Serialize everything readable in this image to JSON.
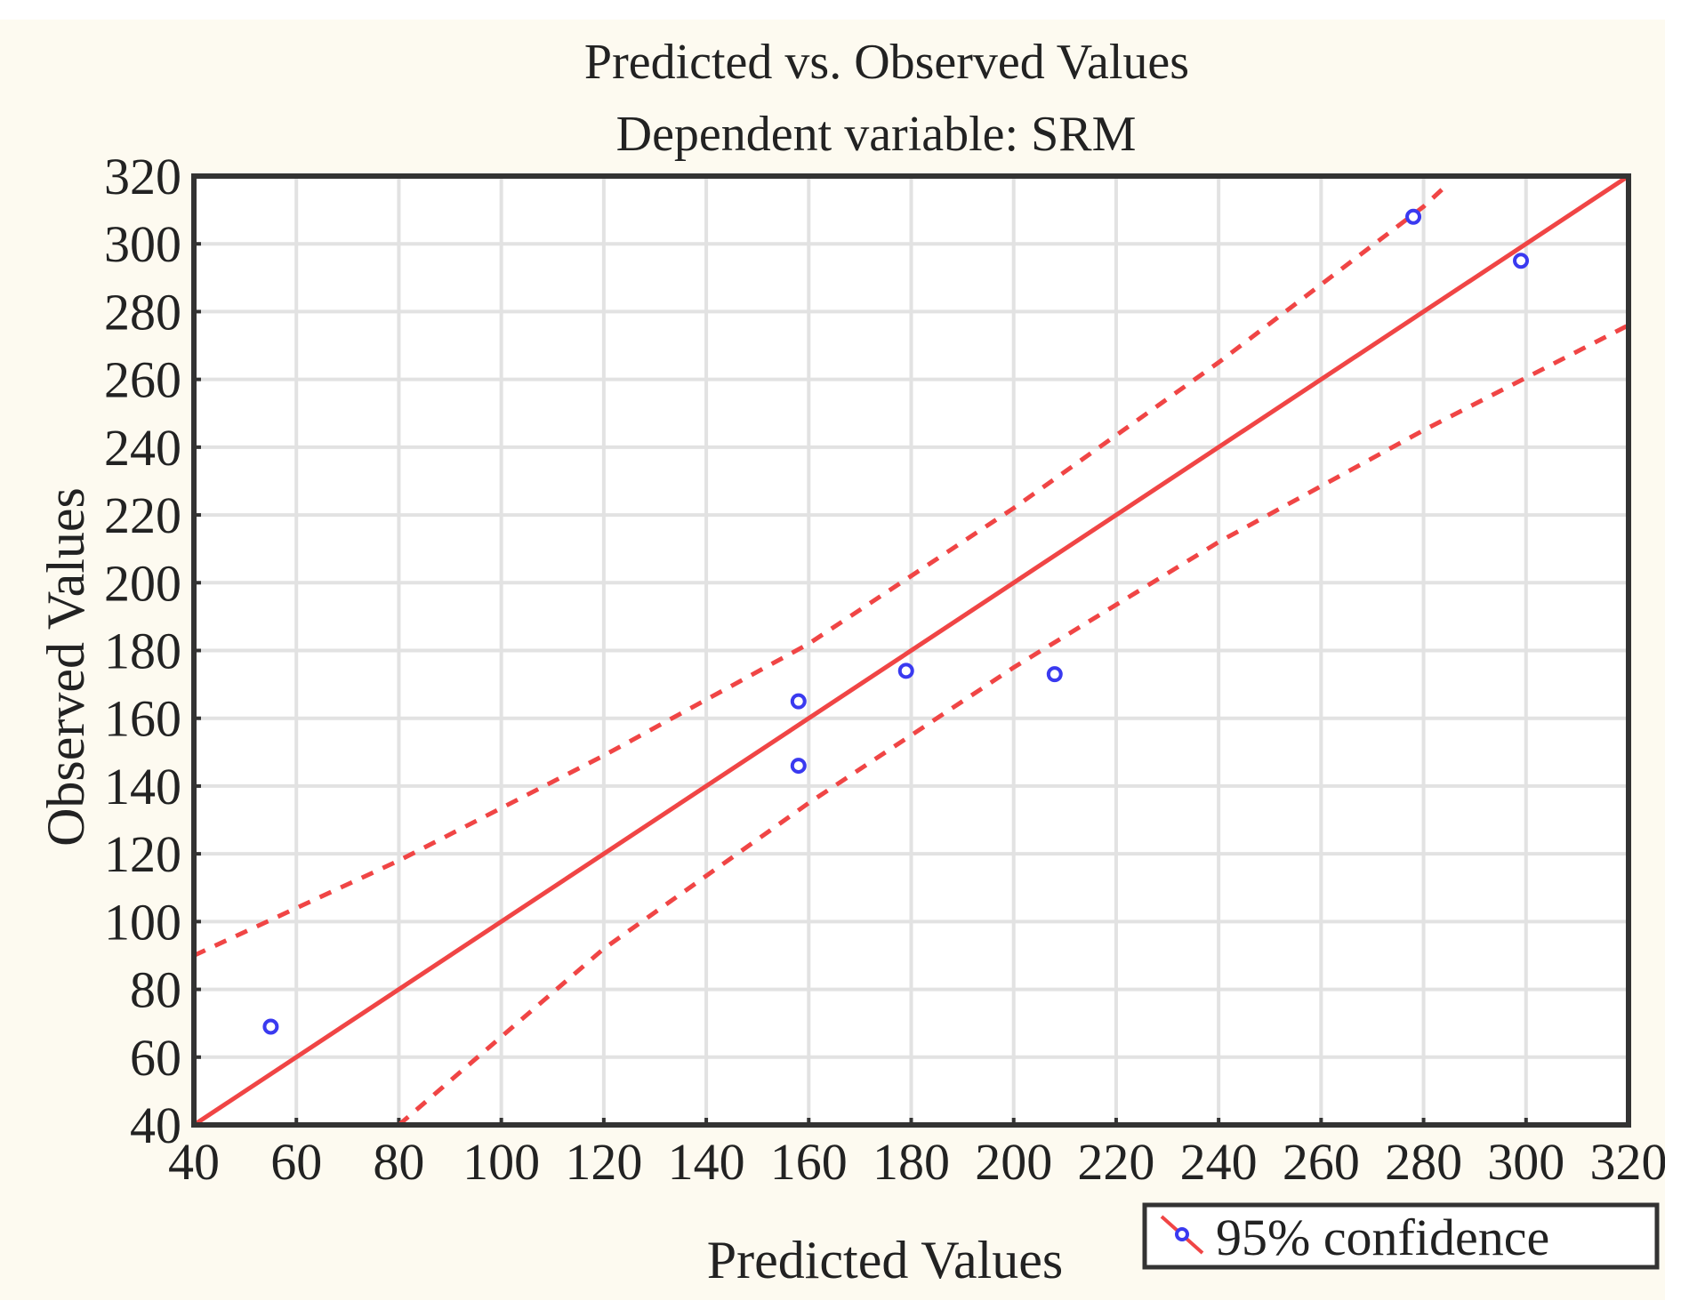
{
  "chart_data": {
    "type": "scatter",
    "title": "Predicted vs. Observed Values",
    "subtitle": "Dependent variable: SRM",
    "xlabel": "Predicted Values",
    "ylabel": "Observed Values",
    "xlim": [
      40,
      320
    ],
    "ylim": [
      40,
      320
    ],
    "xticks": [
      "40",
      "60",
      "80",
      "100",
      "120",
      "140",
      "160",
      "180",
      "200",
      "220",
      "240",
      "260",
      "280",
      "300",
      "320"
    ],
    "yticks": [
      "40",
      "60",
      "80",
      "100",
      "120",
      "140",
      "160",
      "180",
      "200",
      "220",
      "240",
      "260",
      "280",
      "300",
      "320"
    ],
    "grid": true,
    "points": [
      {
        "x": 55,
        "y": 69
      },
      {
        "x": 158,
        "y": 165
      },
      {
        "x": 158,
        "y": 146
      },
      {
        "x": 179,
        "y": 174
      },
      {
        "x": 208,
        "y": 173
      },
      {
        "x": 278,
        "y": 308
      },
      {
        "x": 299,
        "y": 295
      }
    ],
    "fit_line": [
      {
        "x": 40,
        "y": 40
      },
      {
        "x": 320,
        "y": 320
      }
    ],
    "upper_confidence": [
      {
        "x": 40,
        "y": 90
      },
      {
        "x": 80,
        "y": 118
      },
      {
        "x": 120,
        "y": 149
      },
      {
        "x": 160,
        "y": 182
      },
      {
        "x": 200,
        "y": 222
      },
      {
        "x": 240,
        "y": 265
      },
      {
        "x": 280,
        "y": 311
      },
      {
        "x": 285,
        "y": 318
      }
    ],
    "lower_confidence": [
      {
        "x": 80,
        "y": 40
      },
      {
        "x": 120,
        "y": 92
      },
      {
        "x": 160,
        "y": 135
      },
      {
        "x": 200,
        "y": 175
      },
      {
        "x": 240,
        "y": 212
      },
      {
        "x": 280,
        "y": 245
      },
      {
        "x": 320,
        "y": 276
      }
    ],
    "legend": {
      "label": "95% confidence",
      "placement": "bottom-right"
    },
    "colors": {
      "points": "#3a3af0",
      "lines": "#f04545",
      "grid": "#e2e2e2",
      "frame": "#333333"
    }
  }
}
